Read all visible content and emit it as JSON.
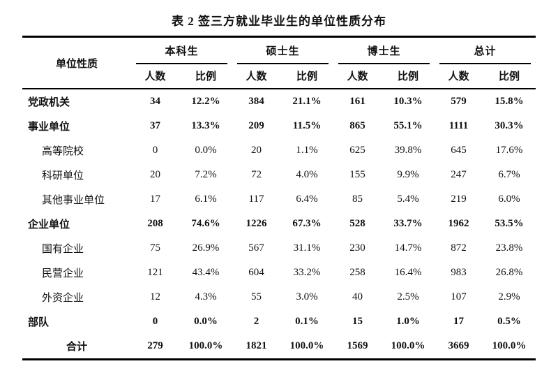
{
  "title": "表 2 签三方就业毕业生的单位性质分布",
  "colors": {
    "text": "#111111",
    "border": "#000000",
    "background": "#ffffff"
  },
  "table": {
    "corner_header": "单位性质",
    "group_headers": [
      "本科生",
      "硕士生",
      "博士生",
      "总计"
    ],
    "sub_headers": [
      "人数",
      "比例"
    ],
    "rows": [
      {
        "label": "党政机关",
        "bold": true,
        "level": "group",
        "values": [
          "34",
          "12.2%",
          "384",
          "21.1%",
          "161",
          "10.3%",
          "579",
          "15.8%"
        ]
      },
      {
        "label": "事业单位",
        "bold": true,
        "level": "group",
        "values": [
          "37",
          "13.3%",
          "209",
          "11.5%",
          "865",
          "55.1%",
          "1111",
          "30.3%"
        ]
      },
      {
        "label": "高等院校",
        "bold": false,
        "level": "sub",
        "values": [
          "0",
          "0.0%",
          "20",
          "1.1%",
          "625",
          "39.8%",
          "645",
          "17.6%"
        ]
      },
      {
        "label": "科研单位",
        "bold": false,
        "level": "sub",
        "values": [
          "20",
          "7.2%",
          "72",
          "4.0%",
          "155",
          "9.9%",
          "247",
          "6.7%"
        ]
      },
      {
        "label": "其他事业单位",
        "bold": false,
        "level": "sub",
        "values": [
          "17",
          "6.1%",
          "117",
          "6.4%",
          "85",
          "5.4%",
          "219",
          "6.0%"
        ]
      },
      {
        "label": "企业单位",
        "bold": true,
        "level": "group",
        "values": [
          "208",
          "74.6%",
          "1226",
          "67.3%",
          "528",
          "33.7%",
          "1962",
          "53.5%"
        ]
      },
      {
        "label": "国有企业",
        "bold": false,
        "level": "sub",
        "values": [
          "75",
          "26.9%",
          "567",
          "31.1%",
          "230",
          "14.7%",
          "872",
          "23.8%"
        ]
      },
      {
        "label": "民营企业",
        "bold": false,
        "level": "sub",
        "values": [
          "121",
          "43.4%",
          "604",
          "33.2%",
          "258",
          "16.4%",
          "983",
          "26.8%"
        ]
      },
      {
        "label": "外资企业",
        "bold": false,
        "level": "sub",
        "values": [
          "12",
          "4.3%",
          "55",
          "3.0%",
          "40",
          "2.5%",
          "107",
          "2.9%"
        ]
      },
      {
        "label": "部队",
        "bold": true,
        "level": "group",
        "values": [
          "0",
          "0.0%",
          "2",
          "0.1%",
          "15",
          "1.0%",
          "17",
          "0.5%"
        ]
      },
      {
        "label": "合计",
        "bold": true,
        "level": "total",
        "values": [
          "279",
          "100.0%",
          "1821",
          "100.0%",
          "1569",
          "100.0%",
          "3669",
          "100.0%"
        ]
      }
    ]
  }
}
